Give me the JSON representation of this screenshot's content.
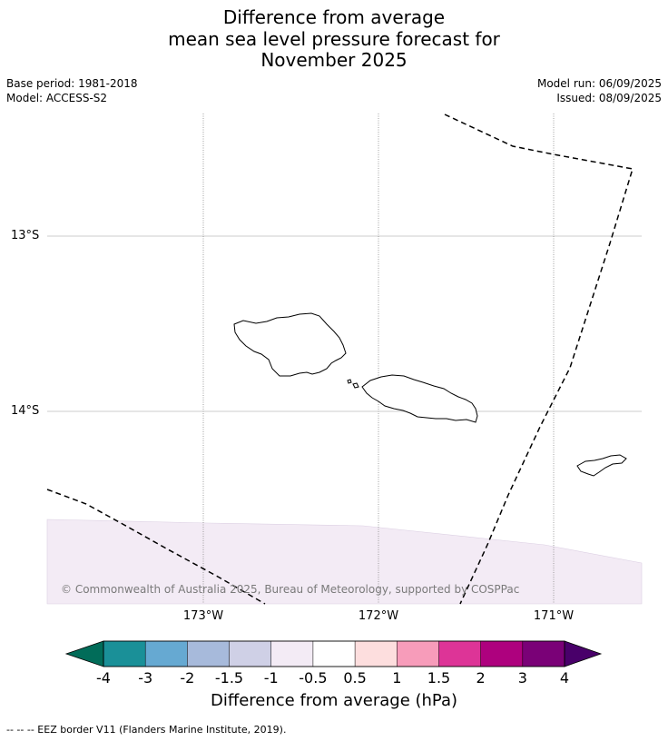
{
  "title": {
    "line1": "Difference from average",
    "line2": "mean sea level pressure forecast for",
    "line3": "November 2025"
  },
  "meta": {
    "base_period": "Base period: 1981-2018",
    "model": "Model: ACCESS-S2",
    "model_run": "Model run: 06/09/2025",
    "issued": "Issued: 08/09/2025"
  },
  "map": {
    "lat_labels": [
      "13°S",
      "14°S"
    ],
    "lon_labels": [
      "173°W",
      "172°W",
      "171°W"
    ],
    "shading_color": "#f3ebf5",
    "copyright": "© Commonwealth of Australia 2025, Bureau of Meteorology, supported by COSPPac"
  },
  "colorbar": {
    "ticks": [
      "-4",
      "-3",
      "-2",
      "-1.5",
      "-1",
      "-0.5",
      "0.5",
      "1",
      "1.5",
      "2",
      "3",
      "4"
    ],
    "colors": [
      "#1a9098",
      "#66a9d2",
      "#a7badb",
      "#cfd0e6",
      "#f3ebf5",
      "#ffffff",
      "#fddede",
      "#f79cba",
      "#dd3497",
      "#ae017e",
      "#7a0177"
    ],
    "under_color": "#016c59",
    "over_color": "#49006a",
    "label": "Difference from average (hPa)"
  },
  "footer": "--  --  -- EEZ border V11 (Flanders Marine Institute, 2019)."
}
